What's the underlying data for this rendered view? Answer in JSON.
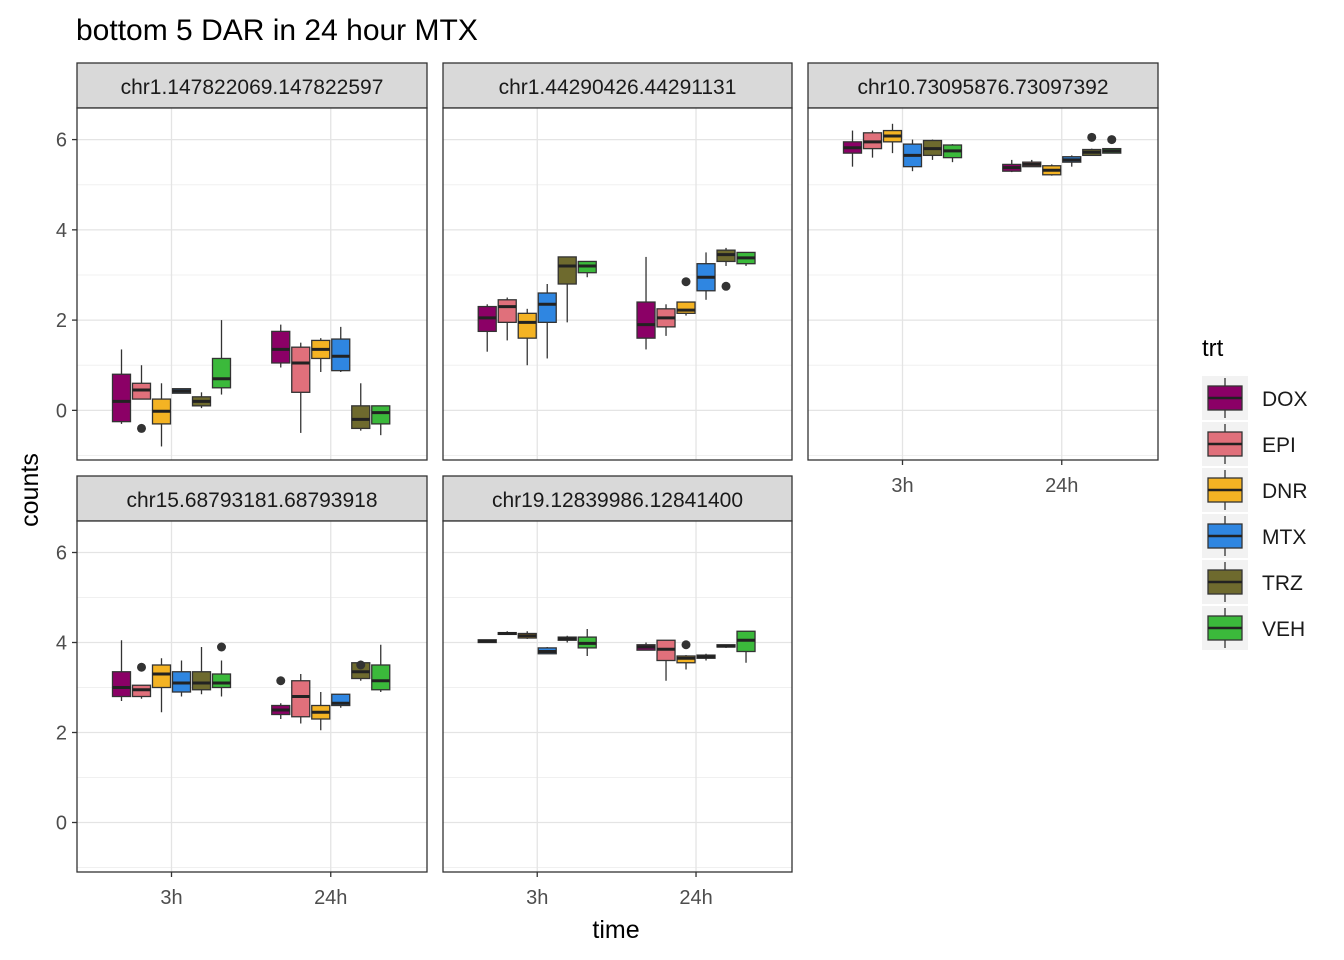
{
  "chart_data": {
    "type": "boxplot",
    "title": "bottom 5 DAR in 24 hour MTX",
    "xlabel": "time",
    "ylabel": "counts",
    "x_categories": [
      "3h",
      "24h"
    ],
    "y_ticks": [
      0,
      2,
      4,
      6
    ],
    "ylim": [
      -1.1,
      6.7
    ],
    "grid": true,
    "legend": {
      "title": "trt",
      "placement": "right",
      "entries": [
        {
          "name": "DOX",
          "color": "#8B0066"
        },
        {
          "name": "EPI",
          "color": "#E0707B"
        },
        {
          "name": "DNR",
          "color": "#F4B323"
        },
        {
          "name": "MTX",
          "color": "#2F86E1"
        },
        {
          "name": "TRZ",
          "color": "#6E6A2E"
        },
        {
          "name": "VEH",
          "color": "#3BB93B"
        }
      ]
    },
    "panels": [
      {
        "strip": "chr1.147822069.147822597",
        "groups": {
          "3h": [
            {
              "trt": "DOX",
              "min": -0.3,
              "q1": -0.25,
              "median": 0.2,
              "q3": 0.8,
              "max": 1.35,
              "outliers": []
            },
            {
              "trt": "EPI",
              "min": 0.25,
              "q1": 0.25,
              "median": 0.45,
              "q3": 0.6,
              "max": 1.0,
              "outliers": [
                -0.4
              ]
            },
            {
              "trt": "DNR",
              "min": -0.8,
              "q1": -0.3,
              "median": -0.02,
              "q3": 0.25,
              "max": 0.6,
              "outliers": []
            },
            {
              "trt": "MTX",
              "min": 0.38,
              "q1": 0.38,
              "median": 0.43,
              "q3": 0.48,
              "max": 0.48,
              "outliers": []
            },
            {
              "trt": "TRZ",
              "min": 0.05,
              "q1": 0.1,
              "median": 0.2,
              "q3": 0.3,
              "max": 0.4,
              "outliers": []
            },
            {
              "trt": "VEH",
              "min": 0.35,
              "q1": 0.5,
              "median": 0.7,
              "q3": 1.15,
              "max": 2.0,
              "outliers": []
            }
          ],
          "24h": [
            {
              "trt": "DOX",
              "min": 0.95,
              "q1": 1.05,
              "median": 1.35,
              "q3": 1.75,
              "max": 1.9,
              "outliers": []
            },
            {
              "trt": "EPI",
              "min": -0.5,
              "q1": 0.4,
              "median": 1.05,
              "q3": 1.4,
              "max": 1.5,
              "outliers": []
            },
            {
              "trt": "DNR",
              "min": 0.85,
              "q1": 1.15,
              "median": 1.35,
              "q3": 1.55,
              "max": 1.6,
              "outliers": []
            },
            {
              "trt": "MTX",
              "min": 0.85,
              "q1": 0.88,
              "median": 1.2,
              "q3": 1.58,
              "max": 1.85,
              "outliers": []
            },
            {
              "trt": "TRZ",
              "min": -0.45,
              "q1": -0.4,
              "median": -0.2,
              "q3": 0.1,
              "max": 0.6,
              "outliers": []
            },
            {
              "trt": "VEH",
              "min": -0.55,
              "q1": -0.3,
              "median": -0.05,
              "q3": 0.1,
              "max": 0.1,
              "outliers": []
            }
          ]
        }
      },
      {
        "strip": "chr1.44290426.44291131",
        "groups": {
          "3h": [
            {
              "trt": "DOX",
              "min": 1.3,
              "q1": 1.75,
              "median": 2.05,
              "q3": 2.3,
              "max": 2.35,
              "outliers": []
            },
            {
              "trt": "EPI",
              "min": 1.55,
              "q1": 1.95,
              "median": 2.3,
              "q3": 2.45,
              "max": 2.5,
              "outliers": []
            },
            {
              "trt": "DNR",
              "min": 1.0,
              "q1": 1.6,
              "median": 1.95,
              "q3": 2.15,
              "max": 2.25,
              "outliers": []
            },
            {
              "trt": "MTX",
              "min": 1.15,
              "q1": 1.95,
              "median": 2.35,
              "q3": 2.6,
              "max": 2.8,
              "outliers": []
            },
            {
              "trt": "TRZ",
              "min": 1.95,
              "q1": 2.8,
              "median": 3.2,
              "q3": 3.4,
              "max": 3.4,
              "outliers": []
            },
            {
              "trt": "VEH",
              "min": 2.95,
              "q1": 3.05,
              "median": 3.2,
              "q3": 3.3,
              "max": 3.3,
              "outliers": []
            }
          ],
          "24h": [
            {
              "trt": "DOX",
              "min": 1.35,
              "q1": 1.6,
              "median": 1.9,
              "q3": 2.4,
              "max": 3.4,
              "outliers": []
            },
            {
              "trt": "EPI",
              "min": 1.65,
              "q1": 1.85,
              "median": 2.05,
              "q3": 2.25,
              "max": 2.35,
              "outliers": []
            },
            {
              "trt": "DNR",
              "min": 2.1,
              "q1": 2.15,
              "median": 2.22,
              "q3": 2.4,
              "max": 2.4,
              "outliers": [
                2.85
              ]
            },
            {
              "trt": "MTX",
              "min": 2.45,
              "q1": 2.65,
              "median": 2.95,
              "q3": 3.25,
              "max": 3.5,
              "outliers": []
            },
            {
              "trt": "TRZ",
              "min": 3.2,
              "q1": 3.3,
              "median": 3.45,
              "q3": 3.55,
              "max": 3.6,
              "outliers": [
                2.75
              ]
            },
            {
              "trt": "VEH",
              "min": 3.2,
              "q1": 3.25,
              "median": 3.38,
              "q3": 3.5,
              "max": 3.5,
              "outliers": []
            }
          ]
        }
      },
      {
        "strip": "chr10.73095876.73097392",
        "groups": {
          "3h": [
            {
              "trt": "DOX",
              "min": 5.4,
              "q1": 5.7,
              "median": 5.82,
              "q3": 5.95,
              "max": 6.2,
              "outliers": []
            },
            {
              "trt": "EPI",
              "min": 5.6,
              "q1": 5.8,
              "median": 5.95,
              "q3": 6.15,
              "max": 6.2,
              "outliers": []
            },
            {
              "trt": "DNR",
              "min": 5.7,
              "q1": 5.95,
              "median": 6.08,
              "q3": 6.2,
              "max": 6.35,
              "outliers": []
            },
            {
              "trt": "MTX",
              "min": 5.3,
              "q1": 5.4,
              "median": 5.65,
              "q3": 5.9,
              "max": 6.0,
              "outliers": []
            },
            {
              "trt": "TRZ",
              "min": 5.55,
              "q1": 5.65,
              "median": 5.8,
              "q3": 5.98,
              "max": 6.0,
              "outliers": []
            },
            {
              "trt": "VEH",
              "min": 5.5,
              "q1": 5.6,
              "median": 5.75,
              "q3": 5.88,
              "max": 5.9,
              "outliers": []
            }
          ],
          "24h": [
            {
              "trt": "DOX",
              "min": 5.28,
              "q1": 5.3,
              "median": 5.38,
              "q3": 5.45,
              "max": 5.55,
              "outliers": []
            },
            {
              "trt": "EPI",
              "min": 5.4,
              "q1": 5.4,
              "median": 5.45,
              "q3": 5.5,
              "max": 5.55,
              "outliers": []
            },
            {
              "trt": "DNR",
              "min": 5.2,
              "q1": 5.22,
              "median": 5.32,
              "q3": 5.42,
              "max": 5.45,
              "outliers": []
            },
            {
              "trt": "MTX",
              "min": 5.4,
              "q1": 5.5,
              "median": 5.55,
              "q3": 5.62,
              "max": 5.65,
              "outliers": []
            },
            {
              "trt": "TRZ",
              "min": 5.65,
              "q1": 5.65,
              "median": 5.72,
              "q3": 5.78,
              "max": 5.8,
              "outliers": [
                6.05
              ]
            },
            {
              "trt": "VEH",
              "min": 5.7,
              "q1": 5.7,
              "median": 5.75,
              "q3": 5.8,
              "max": 5.8,
              "outliers": [
                6.0
              ]
            }
          ]
        }
      },
      {
        "strip": "chr15.68793181.68793918",
        "groups": {
          "3h": [
            {
              "trt": "DOX",
              "min": 2.7,
              "q1": 2.8,
              "median": 3.0,
              "q3": 3.35,
              "max": 4.05,
              "outliers": []
            },
            {
              "trt": "EPI",
              "min": 2.75,
              "q1": 2.8,
              "median": 2.95,
              "q3": 3.05,
              "max": 3.05,
              "outliers": [
                3.45
              ]
            },
            {
              "trt": "DNR",
              "min": 2.45,
              "q1": 3.0,
              "median": 3.3,
              "q3": 3.5,
              "max": 3.65,
              "outliers": []
            },
            {
              "trt": "MTX",
              "min": 2.8,
              "q1": 2.9,
              "median": 3.1,
              "q3": 3.35,
              "max": 3.6,
              "outliers": []
            },
            {
              "trt": "TRZ",
              "min": 2.85,
              "q1": 2.95,
              "median": 3.1,
              "q3": 3.35,
              "max": 3.9,
              "outliers": []
            },
            {
              "trt": "VEH",
              "min": 2.8,
              "q1": 3.0,
              "median": 3.1,
              "q3": 3.3,
              "max": 3.6,
              "outliers": [
                3.9
              ]
            }
          ],
          "24h": [
            {
              "trt": "DOX",
              "min": 2.3,
              "q1": 2.4,
              "median": 2.5,
              "q3": 2.6,
              "max": 2.65,
              "outliers": [
                3.15
              ]
            },
            {
              "trt": "EPI",
              "min": 2.2,
              "q1": 2.35,
              "median": 2.8,
              "q3": 3.15,
              "max": 3.3,
              "outliers": []
            },
            {
              "trt": "DNR",
              "min": 2.05,
              "q1": 2.3,
              "median": 2.45,
              "q3": 2.6,
              "max": 2.9,
              "outliers": []
            },
            {
              "trt": "MTX",
              "min": 2.55,
              "q1": 2.6,
              "median": 2.65,
              "q3": 2.85,
              "max": 2.85,
              "outliers": []
            },
            {
              "trt": "TRZ",
              "min": 3.15,
              "q1": 3.2,
              "median": 3.35,
              "q3": 3.55,
              "max": 3.6,
              "outliers": [
                3.5
              ]
            },
            {
              "trt": "VEH",
              "min": 2.9,
              "q1": 2.95,
              "median": 3.15,
              "q3": 3.5,
              "max": 3.95,
              "outliers": []
            }
          ]
        }
      },
      {
        "strip": "chr19.12839986.12841400",
        "groups": {
          "3h": [
            {
              "trt": "DOX",
              "min": 4.0,
              "q1": 4.0,
              "median": 4.03,
              "q3": 4.06,
              "max": 4.06,
              "outliers": []
            },
            {
              "trt": "EPI",
              "min": 4.17,
              "q1": 4.18,
              "median": 4.2,
              "q3": 4.22,
              "max": 4.25,
              "outliers": []
            },
            {
              "trt": "DNR",
              "min": 4.08,
              "q1": 4.1,
              "median": 4.15,
              "q3": 4.2,
              "max": 4.25,
              "outliers": []
            },
            {
              "trt": "MTX",
              "min": 3.75,
              "q1": 3.75,
              "median": 3.8,
              "q3": 3.88,
              "max": 3.9,
              "outliers": []
            },
            {
              "trt": "TRZ",
              "min": 4.0,
              "q1": 4.05,
              "median": 4.08,
              "q3": 4.12,
              "max": 4.15,
              "outliers": []
            },
            {
              "trt": "VEH",
              "min": 3.7,
              "q1": 3.88,
              "median": 3.98,
              "q3": 4.12,
              "max": 4.3,
              "outliers": []
            }
          ],
          "24h": [
            {
              "trt": "DOX",
              "min": 3.83,
              "q1": 3.83,
              "median": 3.9,
              "q3": 3.95,
              "max": 4.0,
              "outliers": []
            },
            {
              "trt": "EPI",
              "min": 3.15,
              "q1": 3.6,
              "median": 3.85,
              "q3": 4.05,
              "max": 4.05,
              "outliers": []
            },
            {
              "trt": "DNR",
              "min": 3.4,
              "q1": 3.55,
              "median": 3.65,
              "q3": 3.7,
              "max": 3.72,
              "outliers": [
                3.95
              ]
            },
            {
              "trt": "MTX",
              "min": 3.6,
              "q1": 3.65,
              "median": 3.68,
              "q3": 3.72,
              "max": 3.75,
              "outliers": []
            },
            {
              "trt": "TRZ",
              "min": 3.88,
              "q1": 3.9,
              "median": 3.92,
              "q3": 3.95,
              "max": 3.95,
              "outliers": []
            },
            {
              "trt": "VEH",
              "min": 3.55,
              "q1": 3.8,
              "median": 4.05,
              "q3": 4.25,
              "max": 4.25,
              "outliers": []
            }
          ]
        }
      }
    ]
  }
}
